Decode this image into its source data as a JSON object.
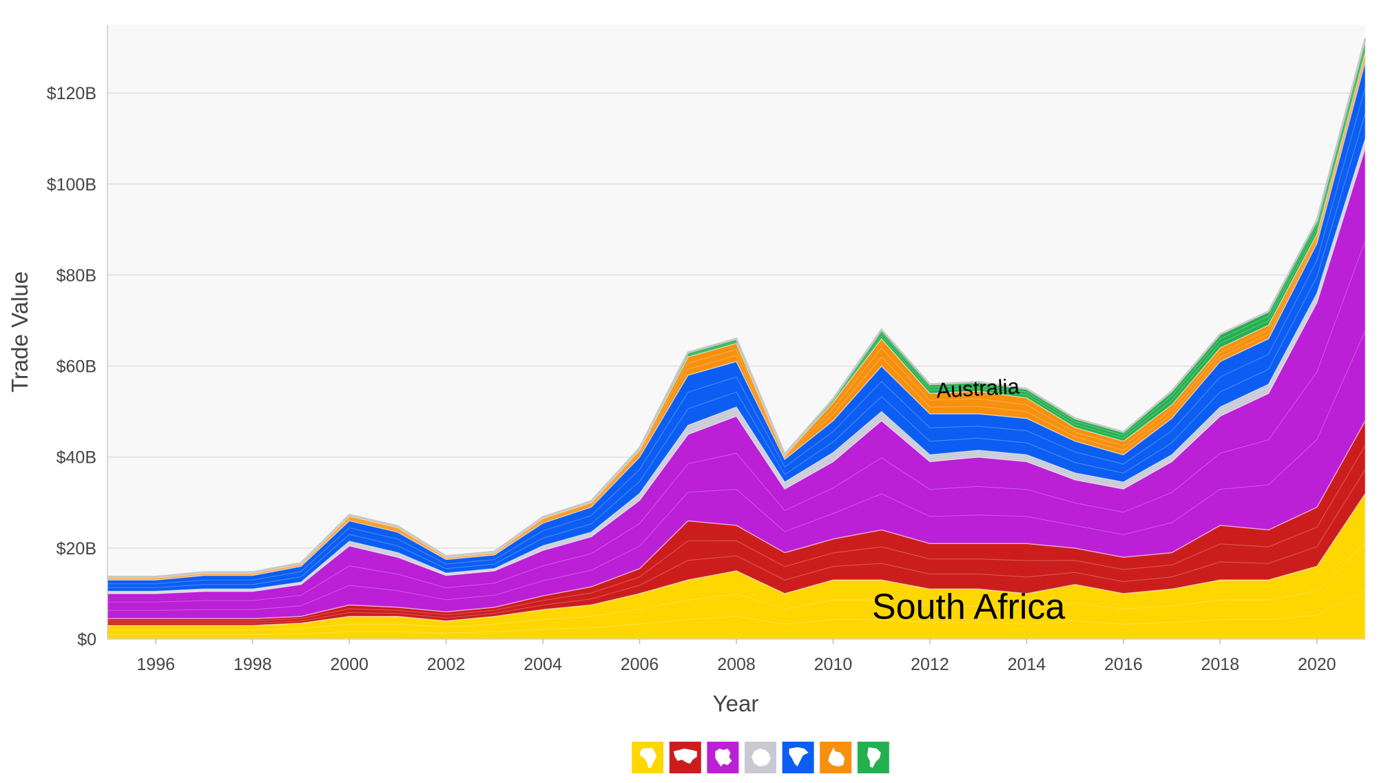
{
  "chart_data": {
    "type": "area",
    "stacked": true,
    "xlabel": "Year",
    "ylabel": "Trade Value",
    "x": [
      1995,
      1996,
      1997,
      1998,
      1999,
      2000,
      2001,
      2002,
      2003,
      2004,
      2005,
      2006,
      2007,
      2008,
      2009,
      2010,
      2011,
      2012,
      2013,
      2014,
      2015,
      2016,
      2017,
      2018,
      2019,
      2020,
      2021
    ],
    "x_ticks": [
      1996,
      1998,
      2000,
      2002,
      2004,
      2006,
      2008,
      2010,
      2012,
      2014,
      2016,
      2018,
      2020
    ],
    "ylim": [
      0,
      135
    ],
    "y_ticks": [
      {
        "value": 0,
        "label": "$0"
      },
      {
        "value": 20,
        "label": "$20B"
      },
      {
        "value": 40,
        "label": "$40B"
      },
      {
        "value": 60,
        "label": "$60B"
      },
      {
        "value": 80,
        "label": "$80B"
      },
      {
        "value": 100,
        "label": "$100B"
      },
      {
        "value": 120,
        "label": "$120B"
      }
    ],
    "grid": true,
    "legend_position": "bottom-center",
    "series": [
      {
        "key": "africa",
        "color": "#FFD700",
        "icon": "africa-icon",
        "values": [
          3,
          3,
          3,
          3,
          3.5,
          5,
          5,
          4,
          5,
          6.5,
          7.5,
          10,
          13,
          15,
          10,
          13,
          13,
          11,
          11,
          10,
          12,
          10,
          11,
          13,
          13,
          16,
          32
        ]
      },
      {
        "key": "asia",
        "color": "#CC1D1D",
        "icon": "asia-icon",
        "values": [
          1.5,
          1.5,
          1.5,
          1.5,
          1.5,
          2.5,
          2,
          2,
          2,
          3,
          4,
          5.5,
          13,
          10,
          9,
          9,
          11,
          10,
          10,
          11,
          8,
          8,
          8,
          12,
          11,
          13,
          16
        ]
      },
      {
        "key": "europe",
        "color": "#BB1FD6",
        "icon": "europe-icon",
        "values": [
          5.5,
          5.5,
          6,
          6,
          7,
          13,
          11,
          8,
          8,
          10,
          11,
          15,
          19,
          24,
          14,
          17,
          24,
          18,
          19,
          18,
          15,
          15,
          20,
          24,
          30,
          45,
          60
        ]
      },
      {
        "key": "antarctica",
        "color": "#C9C9D4",
        "icon": "antarctica-icon",
        "values": [
          0.5,
          0.5,
          0.5,
          0.5,
          0.5,
          1,
          1,
          0.5,
          0.5,
          1,
          1,
          1.5,
          2,
          2,
          1.5,
          2,
          2,
          1.5,
          1.5,
          1.5,
          1.5,
          1.5,
          1.5,
          2,
          2,
          2,
          2
        ]
      },
      {
        "key": "north-america",
        "color": "#0C5EF2",
        "icon": "north-america-icon",
        "values": [
          2.5,
          2.5,
          3,
          3,
          3.5,
          4.5,
          4.5,
          3,
          3,
          5,
          5.5,
          8,
          11,
          10,
          5,
          7,
          10,
          9,
          8,
          8,
          7,
          6,
          8,
          10,
          10,
          11,
          17
        ]
      },
      {
        "key": "oceania",
        "color": "#F7900F",
        "icon": "oceania-icon",
        "values": [
          0.5,
          0.5,
          0.5,
          0.5,
          0.5,
          1,
          1,
          0.5,
          0.5,
          1,
          1,
          1.5,
          4,
          4,
          0.8,
          4,
          6,
          4.5,
          5,
          4.5,
          3,
          3,
          3,
          3,
          3,
          2,
          2
        ]
      },
      {
        "key": "south-america",
        "color": "#25B050",
        "icon": "south-america-icon",
        "values": [
          0.2,
          0.2,
          0.2,
          0.2,
          0.2,
          0.3,
          0.3,
          0.2,
          0.2,
          0.3,
          0.3,
          0.5,
          1,
          1,
          0.3,
          0.8,
          2,
          2,
          2,
          2,
          2,
          2,
          3,
          3,
          3,
          3,
          3
        ]
      }
    ],
    "annotations": [
      {
        "text": "South Africa",
        "x": 2012.8,
        "y": 4.5,
        "size": "large"
      },
      {
        "text": "Australia",
        "x": 2013.0,
        "y": 53.5,
        "size": "small",
        "rotate": -3
      }
    ]
  }
}
